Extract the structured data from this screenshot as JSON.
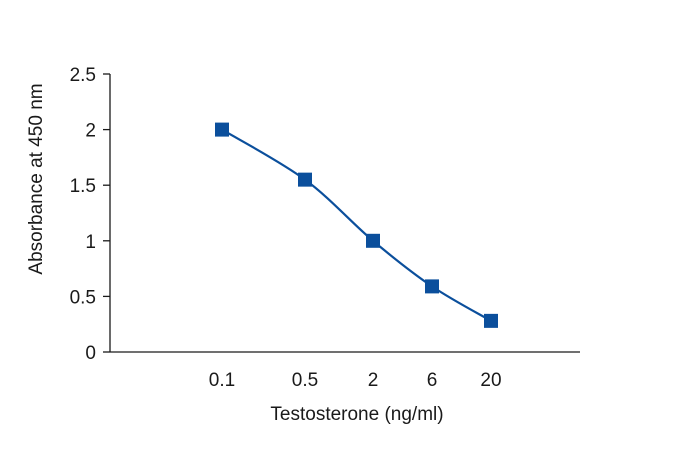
{
  "chart_data": {
    "type": "line",
    "xlabel": "Testosterone (ng/ml)",
    "ylabel": "Absorbance at 450 nm",
    "categories": [
      "0.1",
      "0.5",
      "2",
      "6",
      "20"
    ],
    "x": [
      0.1,
      0.5,
      2,
      6,
      20
    ],
    "ylim": [
      0,
      2.5
    ],
    "yticks": [
      "0",
      "0.5",
      "1",
      "1.5",
      "2",
      "2.5"
    ],
    "series": [
      {
        "values": [
          2.0,
          1.55,
          1.0,
          0.59,
          0.28
        ],
        "color": "#0b4f9c",
        "marker": "square"
      }
    ],
    "grid": false,
    "legend": "none"
  }
}
